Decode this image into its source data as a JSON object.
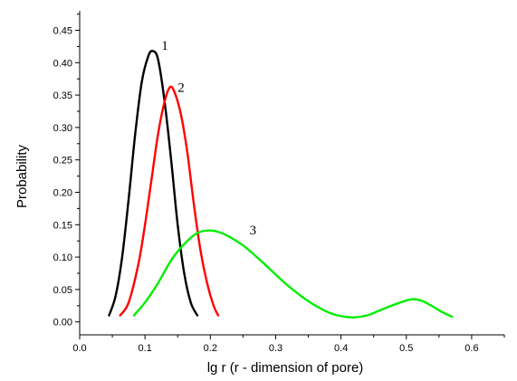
{
  "chart_data": {
    "type": "line",
    "title": "",
    "xlabel": "lg r (r - dimension of pore)",
    "ylabel": "Probability",
    "xlim": [
      0.0,
      0.65
    ],
    "ylim": [
      -0.02,
      0.48
    ],
    "xticks": [
      0.0,
      0.1,
      0.2,
      0.3,
      0.4,
      0.5,
      0.6
    ],
    "xtick_labels": [
      "0.0",
      "0.1",
      "0.2",
      "0.3",
      "0.4",
      "0.5",
      "0.6"
    ],
    "yticks": [
      0.0,
      0.05,
      0.1,
      0.15,
      0.2,
      0.25,
      0.3,
      0.35,
      0.4,
      0.45
    ],
    "ytick_labels": [
      "0.00",
      "0.05",
      "0.10",
      "0.15",
      "0.20",
      "0.25",
      "0.30",
      "0.35",
      "0.40",
      "0.45"
    ],
    "grid": false,
    "legend": "none",
    "series": [
      {
        "label": "1",
        "color": "#000000",
        "x": [
          0.045,
          0.055,
          0.065,
          0.075,
          0.085,
          0.095,
          0.105,
          0.112,
          0.12,
          0.13,
          0.14,
          0.15,
          0.16,
          0.17,
          0.18
        ],
        "y": [
          0.01,
          0.04,
          0.1,
          0.19,
          0.29,
          0.37,
          0.41,
          0.418,
          0.405,
          0.34,
          0.25,
          0.15,
          0.075,
          0.03,
          0.01
        ]
      },
      {
        "label": "2",
        "color": "#ff0000",
        "x": [
          0.062,
          0.075,
          0.09,
          0.1,
          0.11,
          0.12,
          0.13,
          0.138,
          0.145,
          0.155,
          0.165,
          0.175,
          0.185,
          0.195,
          0.205,
          0.212
        ],
        "y": [
          0.01,
          0.03,
          0.09,
          0.15,
          0.22,
          0.29,
          0.34,
          0.362,
          0.355,
          0.32,
          0.26,
          0.18,
          0.11,
          0.06,
          0.025,
          0.01
        ]
      },
      {
        "label": "3",
        "color": "#00ee00",
        "x": [
          0.083,
          0.1,
          0.12,
          0.14,
          0.16,
          0.18,
          0.2,
          0.22,
          0.25,
          0.28,
          0.3,
          0.32,
          0.35,
          0.38,
          0.4,
          0.42,
          0.44,
          0.46,
          0.48,
          0.5,
          0.512,
          0.525,
          0.54,
          0.555,
          0.57
        ],
        "y": [
          0.01,
          0.03,
          0.06,
          0.095,
          0.12,
          0.137,
          0.141,
          0.136,
          0.118,
          0.092,
          0.073,
          0.055,
          0.032,
          0.015,
          0.009,
          0.007,
          0.01,
          0.018,
          0.026,
          0.033,
          0.035,
          0.032,
          0.024,
          0.015,
          0.008
        ]
      }
    ],
    "annotations": [
      {
        "text": "1",
        "x": 0.125,
        "y": 0.42
      },
      {
        "text": "2",
        "x": 0.15,
        "y": 0.355
      },
      {
        "text": "3",
        "x": 0.26,
        "y": 0.135
      }
    ]
  }
}
